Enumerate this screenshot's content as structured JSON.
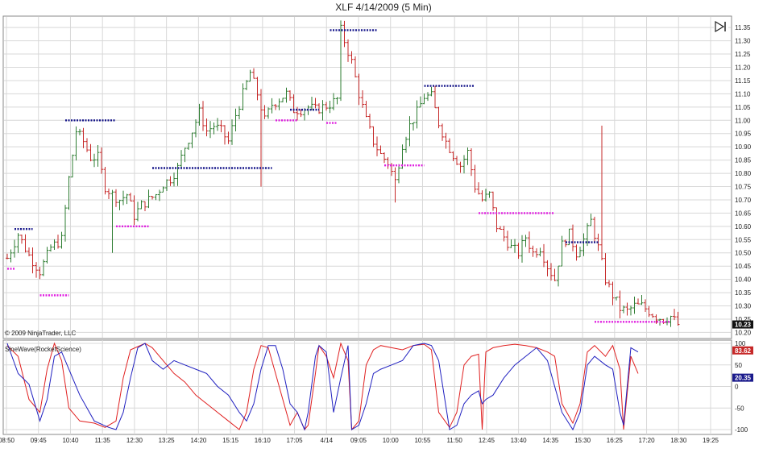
{
  "window": {
    "title": "XLF  4/14/2009 (5 Min)",
    "copyright": "© 2009 NinjaTrader, LLC"
  },
  "colors": {
    "up_bar": "#2e7d32",
    "down_bar": "#c62828",
    "resistance": "#1a1a8c",
    "support": "#e020e0",
    "sine": "#e02020",
    "leadsine": "#2020c0",
    "grid": "#d8d8d8"
  },
  "icons": {
    "toolbar": "skip-to-end-icon"
  },
  "chart_data": [
    {
      "type": "ohlc",
      "title": "XLF  4/14/2009 (5 Min)",
      "x_ticks": [
        "08:50",
        "09:45",
        "10:40",
        "11:35",
        "12:30",
        "13:25",
        "14:20",
        "15:15",
        "16:10",
        "17:05",
        "4/14",
        "09:05",
        "10:00",
        "10:55",
        "11:50",
        "12:45",
        "13:40",
        "14:35",
        "15:30",
        "16:25",
        "17:20",
        "18:30",
        "19:25"
      ],
      "y_ticks": [
        "11.35",
        "11.30",
        "11.25",
        "11.20",
        "11.15",
        "11.10",
        "11.05",
        "11.00",
        "10.95",
        "10.90",
        "10.85",
        "10.80",
        "10.75",
        "10.70",
        "10.65",
        "10.60",
        "10.55",
        "10.50",
        "10.45",
        "10.40",
        "10.35",
        "10.30",
        "10.25",
        "10.20"
      ],
      "ylim": [
        10.18,
        11.39
      ],
      "last_price": "10.23",
      "close_path": [
        [
          0,
          10.48
        ],
        [
          3,
          10.57
        ],
        [
          6,
          10.49
        ],
        [
          9,
          10.43
        ],
        [
          12,
          10.52
        ],
        [
          15,
          10.55
        ],
        [
          17,
          10.78
        ],
        [
          19,
          10.96
        ],
        [
          21,
          10.92
        ],
        [
          23,
          10.86
        ],
        [
          25,
          10.86
        ],
        [
          27,
          10.75
        ],
        [
          29,
          10.72
        ],
        [
          31,
          10.7
        ],
        [
          33,
          10.72
        ],
        [
          35,
          10.64
        ],
        [
          37,
          10.68
        ],
        [
          39,
          10.7
        ],
        [
          41,
          10.72
        ],
        [
          43,
          10.76
        ],
        [
          45,
          10.78
        ],
        [
          47,
          10.82
        ],
        [
          49,
          10.9
        ],
        [
          51,
          10.96
        ],
        [
          53,
          11.03
        ],
        [
          55,
          10.96
        ],
        [
          57,
          10.98
        ],
        [
          59,
          10.96
        ],
        [
          61,
          10.92
        ],
        [
          63,
          11.02
        ],
        [
          65,
          11.1
        ],
        [
          67,
          11.18
        ],
        [
          69,
          11.1
        ],
        [
          71,
          11.0
        ],
        [
          73,
          11.06
        ],
        [
          75,
          11.08
        ],
        [
          77,
          11.1
        ],
        [
          79,
          11.04
        ],
        [
          81,
          11.04
        ],
        [
          83,
          11.05
        ],
        [
          85,
          11.04
        ],
        [
          87,
          11.05
        ],
        [
          89,
          11.06
        ],
        [
          91,
          11.08
        ],
        [
          92,
          11.34
        ],
        [
          93,
          11.3
        ],
        [
          95,
          11.22
        ],
        [
          97,
          11.1
        ],
        [
          99,
          11.0
        ],
        [
          101,
          10.92
        ],
        [
          103,
          10.87
        ],
        [
          105,
          10.84
        ],
        [
          107,
          10.77
        ],
        [
          109,
          10.91
        ],
        [
          111,
          10.98
        ],
        [
          113,
          11.03
        ],
        [
          115,
          11.09
        ],
        [
          117,
          11.09
        ],
        [
          119,
          10.99
        ],
        [
          121,
          10.92
        ],
        [
          123,
          10.87
        ],
        [
          125,
          10.83
        ],
        [
          127,
          10.88
        ],
        [
          129,
          10.75
        ],
        [
          131,
          10.7
        ],
        [
          133,
          10.72
        ],
        [
          135,
          10.6
        ],
        [
          137,
          10.56
        ],
        [
          139,
          10.52
        ],
        [
          141,
          10.5
        ],
        [
          143,
          10.56
        ],
        [
          145,
          10.5
        ],
        [
          147,
          10.52
        ],
        [
          149,
          10.45
        ],
        [
          151,
          10.4
        ],
        [
          153,
          10.53
        ],
        [
          155,
          10.57
        ],
        [
          157,
          10.5
        ],
        [
          159,
          10.55
        ],
        [
          161,
          10.62
        ],
        [
          163,
          10.52
        ],
        [
          165,
          10.4
        ],
        [
          167,
          10.34
        ],
        [
          169,
          10.29
        ],
        [
          171,
          10.28
        ],
        [
          173,
          10.3
        ],
        [
          175,
          10.3
        ],
        [
          177,
          10.28
        ],
        [
          179,
          10.26
        ],
        [
          181,
          10.25
        ],
        [
          183,
          10.26
        ],
        [
          185,
          10.23
        ]
      ],
      "resistance_segments": [
        [
          2,
          7,
          10.59
        ],
        [
          16,
          30,
          11.0
        ],
        [
          40,
          73,
          10.82
        ],
        [
          78,
          86,
          11.04
        ],
        [
          89,
          102,
          11.34
        ],
        [
          115,
          129,
          11.13
        ],
        [
          154,
          163,
          10.54
        ]
      ],
      "support_segments": [
        [
          0,
          2,
          10.44
        ],
        [
          9,
          17,
          10.34
        ],
        [
          30,
          39,
          10.6
        ],
        [
          74,
          80,
          11.0
        ],
        [
          88,
          91,
          10.99
        ],
        [
          104,
          115,
          10.83
        ],
        [
          130,
          151,
          10.65
        ],
        [
          162,
          183,
          10.24
        ]
      ]
    },
    {
      "type": "line",
      "title": "SineWave(RocketScience)",
      "y_ticks": [
        "100",
        "50",
        "0",
        "-50",
        "-100"
      ],
      "ylim": [
        -100,
        100
      ],
      "series": [
        {
          "name": "",
          "last_value": "83.62",
          "points": [
            [
              0,
              95
            ],
            [
              3,
              70
            ],
            [
              6,
              -30
            ],
            [
              9,
              -60
            ],
            [
              11,
              40
            ],
            [
              13,
              100
            ],
            [
              15,
              60
            ],
            [
              17,
              -50
            ],
            [
              20,
              -80
            ],
            [
              24,
              -85
            ],
            [
              27,
              -95
            ],
            [
              30,
              -80
            ],
            [
              32,
              20
            ],
            [
              34,
              85
            ],
            [
              38,
              100
            ],
            [
              40,
              90
            ],
            [
              43,
              60
            ],
            [
              46,
              30
            ],
            [
              49,
              10
            ],
            [
              52,
              -20
            ],
            [
              55,
              -40
            ],
            [
              58,
              -60
            ],
            [
              61,
              -80
            ],
            [
              64,
              -100
            ],
            [
              66,
              -60
            ],
            [
              68,
              40
            ],
            [
              70,
              95
            ],
            [
              72,
              90
            ],
            [
              74,
              30
            ],
            [
              76,
              -30
            ],
            [
              78,
              -90
            ],
            [
              80,
              -60
            ],
            [
              82,
              -100
            ],
            [
              83,
              -90
            ],
            [
              85,
              30
            ],
            [
              86,
              95
            ],
            [
              88,
              70
            ],
            [
              90,
              20
            ],
            [
              92,
              100
            ],
            [
              94,
              60
            ],
            [
              95,
              -100
            ],
            [
              97,
              -80
            ],
            [
              99,
              50
            ],
            [
              101,
              85
            ],
            [
              103,
              95
            ],
            [
              106,
              90
            ],
            [
              109,
              85
            ],
            [
              112,
              95
            ],
            [
              115,
              98
            ],
            [
              117,
              85
            ],
            [
              119,
              -60
            ],
            [
              122,
              -95
            ],
            [
              124,
              -60
            ],
            [
              126,
              50
            ],
            [
              128,
              70
            ],
            [
              130,
              75
            ],
            [
              131,
              -100
            ],
            [
              132,
              80
            ],
            [
              134,
              90
            ],
            [
              137,
              95
            ],
            [
              140,
              98
            ],
            [
              143,
              95
            ],
            [
              146,
              90
            ],
            [
              149,
              80
            ],
            [
              151,
              70
            ],
            [
              153,
              -40
            ],
            [
              156,
              -85
            ],
            [
              158,
              -40
            ],
            [
              160,
              80
            ],
            [
              162,
              95
            ],
            [
              165,
              70
            ],
            [
              167,
              95
            ],
            [
              169,
              40
            ],
            [
              170,
              -100
            ],
            [
              172,
              70
            ],
            [
              174,
              30
            ]
          ]
        },
        {
          "name": "",
          "last_value": "20.35",
          "points": [
            [
              0,
              100
            ],
            [
              3,
              30
            ],
            [
              6,
              5
            ],
            [
              9,
              -80
            ],
            [
              11,
              -30
            ],
            [
              13,
              70
            ],
            [
              15,
              80
            ],
            [
              17,
              40
            ],
            [
              20,
              -20
            ],
            [
              24,
              -80
            ],
            [
              28,
              -95
            ],
            [
              30,
              -100
            ],
            [
              32,
              -60
            ],
            [
              34,
              20
            ],
            [
              36,
              90
            ],
            [
              38,
              100
            ],
            [
              40,
              60
            ],
            [
              43,
              40
            ],
            [
              46,
              60
            ],
            [
              49,
              50
            ],
            [
              52,
              40
            ],
            [
              55,
              30
            ],
            [
              58,
              0
            ],
            [
              61,
              -20
            ],
            [
              64,
              -60
            ],
            [
              66,
              -80
            ],
            [
              68,
              -40
            ],
            [
              70,
              40
            ],
            [
              72,
              95
            ],
            [
              74,
              95
            ],
            [
              76,
              40
            ],
            [
              78,
              -40
            ],
            [
              80,
              -60
            ],
            [
              82,
              -100
            ],
            [
              83,
              -60
            ],
            [
              85,
              70
            ],
            [
              86,
              95
            ],
            [
              88,
              80
            ],
            [
              90,
              -60
            ],
            [
              92,
              20
            ],
            [
              94,
              95
            ],
            [
              95,
              -100
            ],
            [
              97,
              -90
            ],
            [
              99,
              -40
            ],
            [
              101,
              30
            ],
            [
              103,
              40
            ],
            [
              106,
              50
            ],
            [
              109,
              60
            ],
            [
              112,
              95
            ],
            [
              115,
              100
            ],
            [
              117,
              95
            ],
            [
              119,
              60
            ],
            [
              122,
              -100
            ],
            [
              124,
              -90
            ],
            [
              126,
              -40
            ],
            [
              128,
              -20
            ],
            [
              130,
              -10
            ],
            [
              131,
              -40
            ],
            [
              132,
              -30
            ],
            [
              134,
              -20
            ],
            [
              137,
              20
            ],
            [
              140,
              50
            ],
            [
              143,
              70
            ],
            [
              146,
              90
            ],
            [
              149,
              60
            ],
            [
              151,
              0
            ],
            [
              153,
              -60
            ],
            [
              156,
              -100
            ],
            [
              158,
              -60
            ],
            [
              160,
              50
            ],
            [
              162,
              70
            ],
            [
              165,
              50
            ],
            [
              167,
              40
            ],
            [
              169,
              -60
            ],
            [
              170,
              -90
            ],
            [
              172,
              90
            ],
            [
              174,
              80
            ]
          ]
        }
      ]
    }
  ]
}
